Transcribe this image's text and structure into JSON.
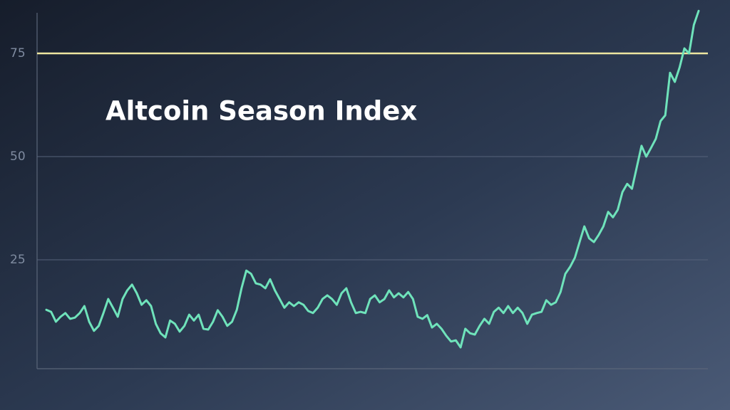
{
  "chart_data": {
    "type": "line",
    "title": "Altcoin Season Index",
    "ylim": [
      0,
      86
    ],
    "yticks": [
      25,
      50,
      75
    ],
    "grid": true,
    "threshold": 75,
    "threshold_color": "#eee6a0",
    "series": [
      {
        "color": "#6fe3bb",
        "values": [
          12.9,
          12.4,
          10.0,
          11.2,
          12.1,
          10.7,
          11.0,
          12.1,
          13.8,
          10.0,
          7.8,
          9.0,
          12.1,
          15.5,
          13.4,
          11.2,
          15.5,
          17.6,
          19.0,
          16.9,
          14.1,
          15.2,
          13.8,
          9.5,
          7.2,
          6.2,
          10.3,
          9.5,
          7.6,
          9.0,
          11.7,
          10.3,
          11.7,
          8.3,
          8.1,
          10.0,
          12.8,
          11.2,
          9.0,
          10.0,
          12.9,
          18.1,
          22.4,
          21.6,
          19.3,
          19.0,
          18.1,
          20.3,
          17.6,
          15.5,
          13.4,
          14.7,
          13.8,
          14.7,
          14.1,
          12.6,
          12.1,
          13.4,
          15.5,
          16.4,
          15.5,
          14.1,
          16.9,
          18.1,
          14.7,
          12.1,
          12.4,
          12.1,
          15.5,
          16.4,
          14.7,
          15.5,
          17.6,
          15.9,
          16.9,
          15.9,
          17.2,
          15.5,
          11.2,
          10.7,
          11.6,
          8.6,
          9.5,
          8.3,
          6.6,
          5.2,
          5.5,
          3.8,
          8.3,
          7.2,
          6.9,
          9.0,
          10.7,
          9.5,
          12.4,
          13.4,
          12.1,
          13.8,
          12.1,
          13.4,
          12.1,
          9.5,
          11.7,
          12.1,
          12.4,
          15.2,
          14.1,
          14.7,
          17.2,
          21.6,
          23.3,
          25.5,
          29.3,
          33.1,
          30.2,
          29.3,
          31.0,
          33.1,
          36.6,
          35.3,
          37.1,
          41.4,
          43.4,
          42.2,
          47.4,
          52.6,
          50.0,
          52.1,
          54.3,
          58.6,
          60.0,
          70.3,
          68.1,
          71.6,
          76.2,
          75.0,
          81.9,
          85.3
        ]
      }
    ]
  }
}
